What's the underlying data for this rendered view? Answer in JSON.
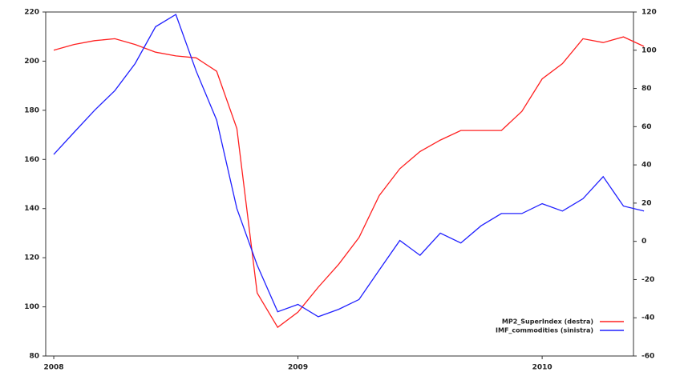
{
  "chart_data": {
    "type": "line",
    "x": [
      2008,
      2008.083,
      2008.167,
      2008.25,
      2008.333,
      2008.417,
      2008.5,
      2008.583,
      2008.667,
      2008.75,
      2008.833,
      2008.917,
      2009,
      2009.083,
      2009.167,
      2009.25,
      2009.333,
      2009.417,
      2009.5,
      2009.583,
      2009.667,
      2009.75,
      2009.833,
      2009.917,
      2010,
      2010.083,
      2010.167,
      2010.25,
      2010.333,
      2010.417
    ],
    "xlim": [
      2007.967,
      2010.374
    ],
    "xticks": [
      2008,
      2009,
      2010
    ],
    "ylim": [
      80,
      220
    ],
    "yticks": [
      80,
      100,
      120,
      140,
      160,
      180,
      200,
      220
    ],
    "y2lim": [
      -60,
      120
    ],
    "y2ticks": [
      -60,
      -40,
      -20,
      0,
      20,
      40,
      60,
      80,
      100,
      120
    ],
    "legend": "lower right",
    "series": [
      {
        "name": "MP2_SuperIndex (destra)",
        "color": "#ff2020",
        "axis": "y2",
        "values": [
          100,
          103,
          105,
          106,
          103,
          99,
          97,
          96,
          89,
          59,
          -27,
          -45,
          -37,
          -24,
          -12,
          2,
          24,
          38,
          47,
          53,
          58,
          58,
          58,
          68,
          85,
          93,
          106,
          104,
          107,
          102
        ]
      },
      {
        "name": "IMF_commodities (sinistra)",
        "color": "#2020ff",
        "values": [
          162,
          171,
          180,
          188,
          199,
          214,
          219,
          196,
          176,
          140,
          117,
          98,
          101,
          96,
          99,
          103,
          115,
          127,
          121,
          130,
          126,
          133,
          138,
          138,
          142,
          139,
          144,
          153,
          141,
          139
        ]
      }
    ]
  }
}
